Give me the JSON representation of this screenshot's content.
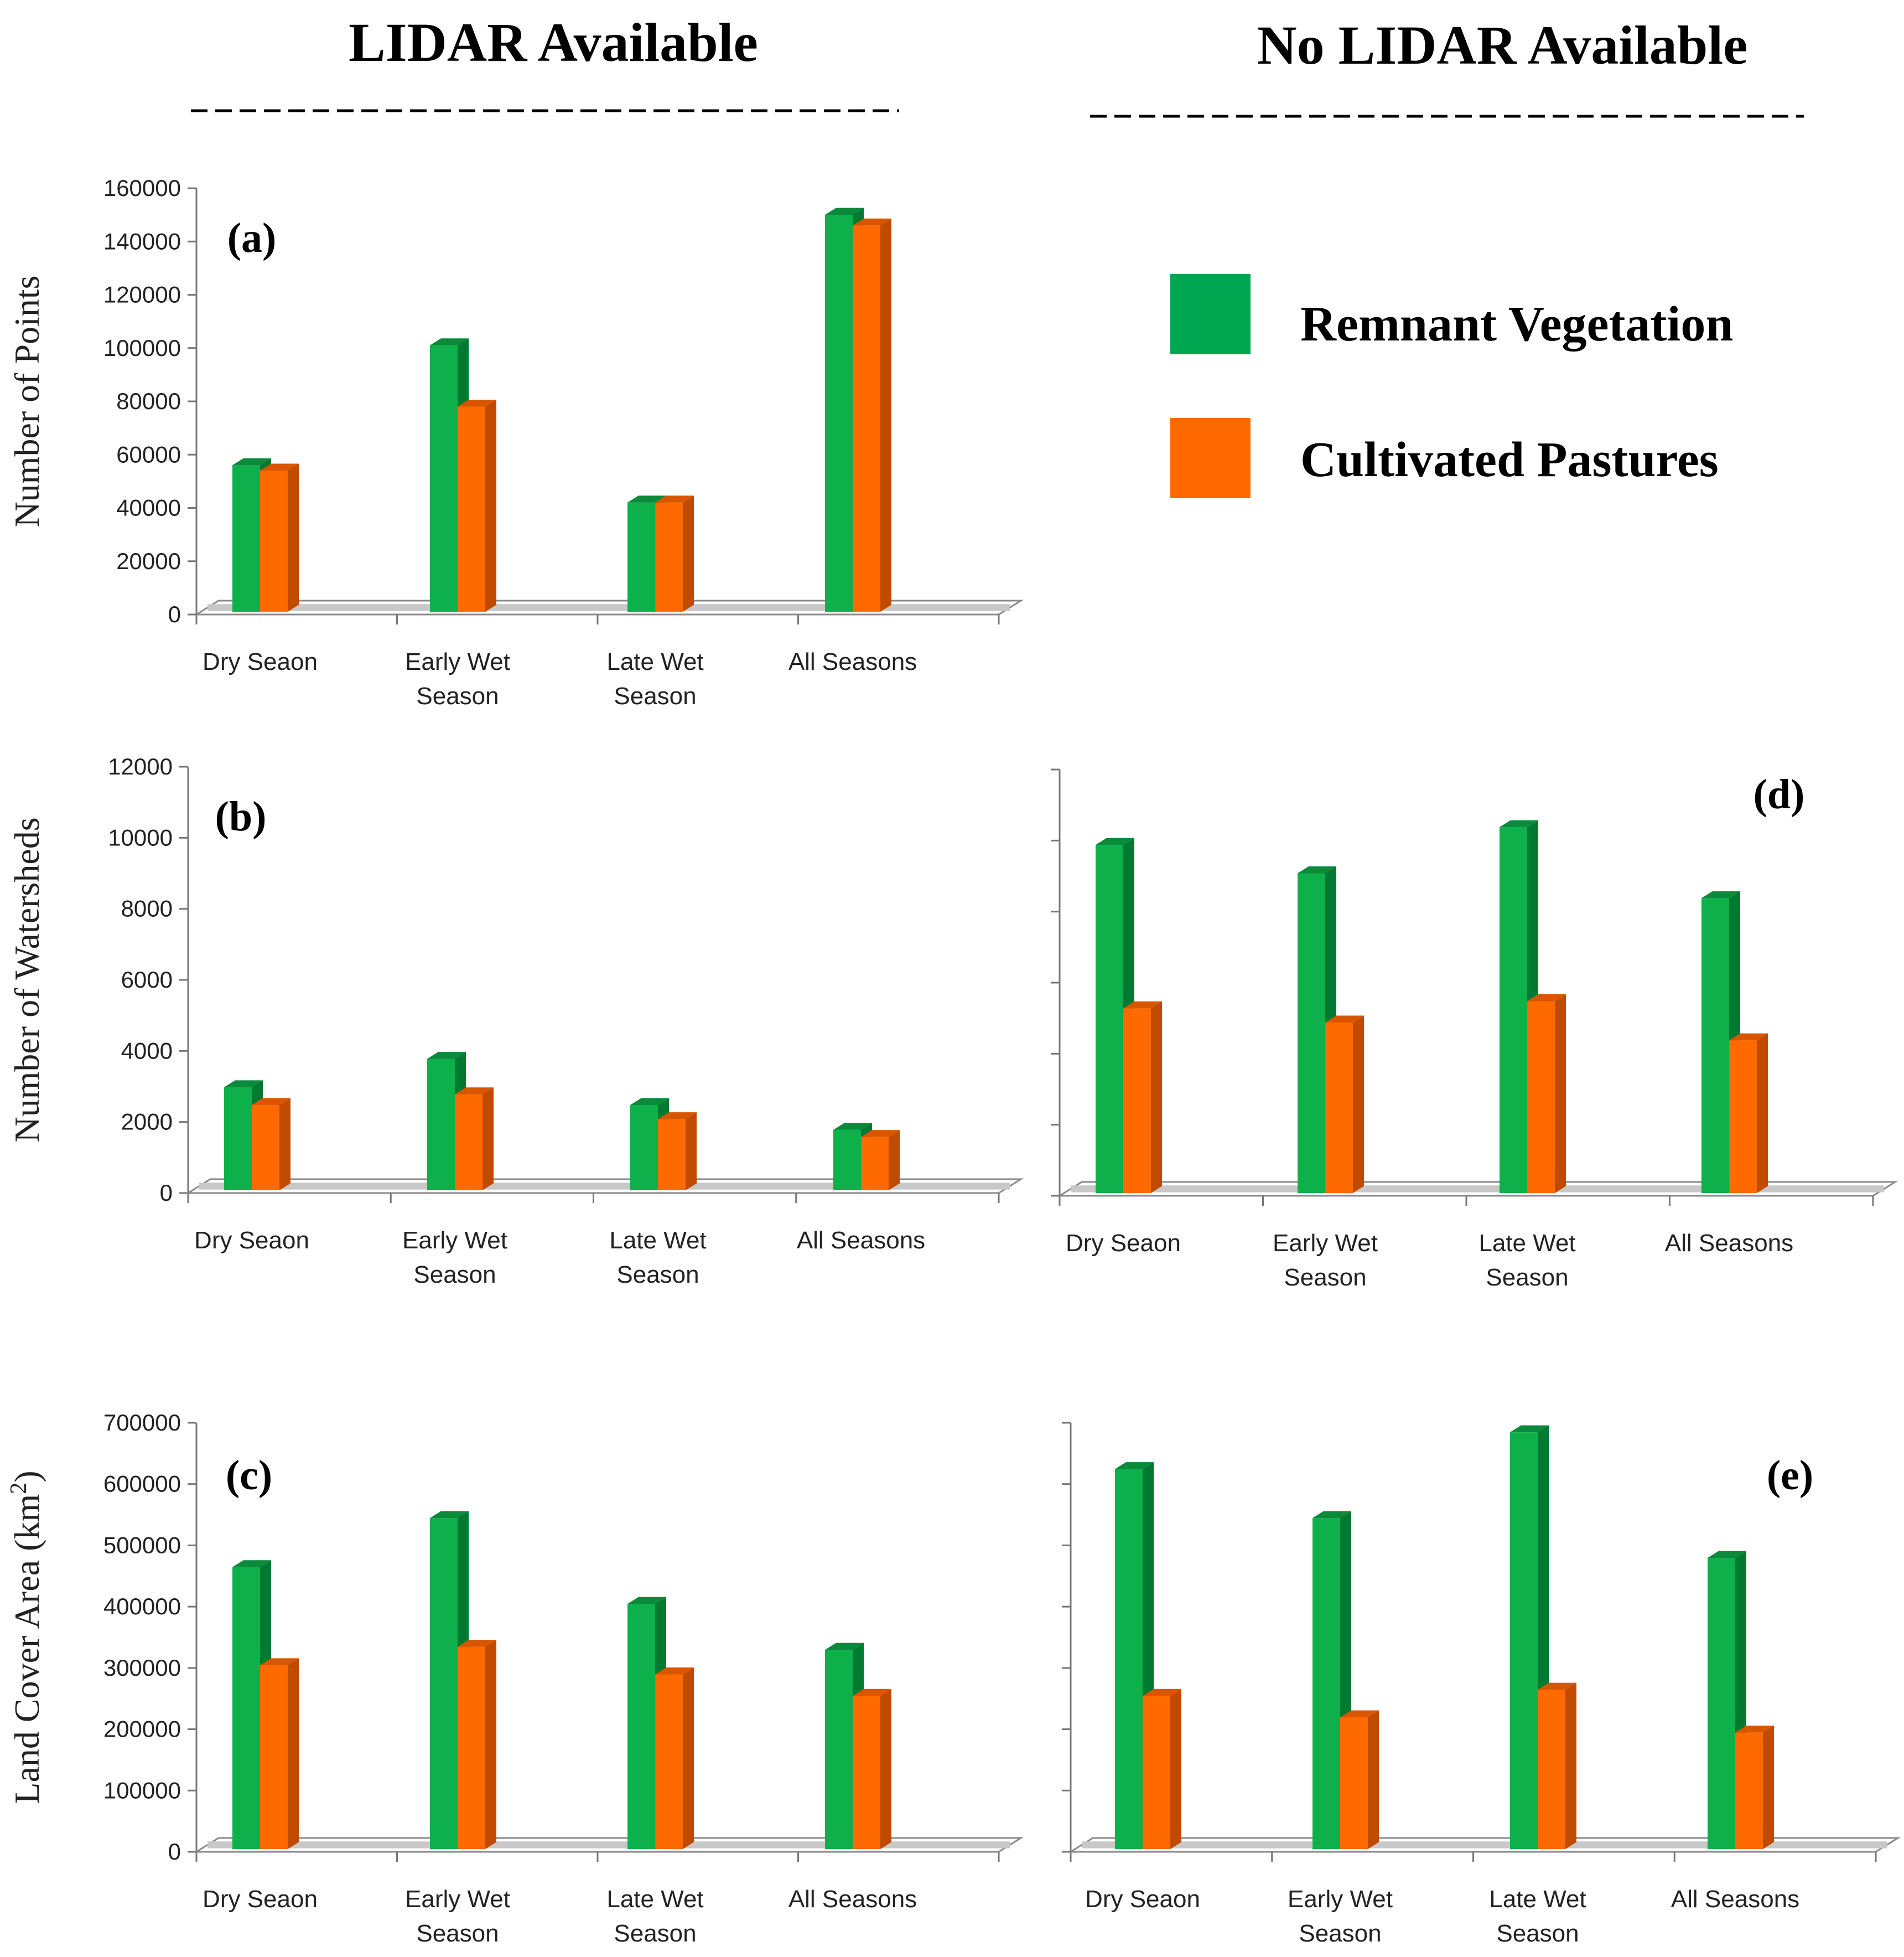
{
  "headers": {
    "left": "LIDAR Available",
    "right": "No LIDAR Available"
  },
  "legend": [
    {
      "label": "Remnant Vegetation",
      "color": "#00a650"
    },
    {
      "label": "Cultivated Pastures",
      "color": "#ff6a00"
    }
  ],
  "colors": {
    "green_front": "#0db04b",
    "green_side": "#007a30",
    "green_top": "#0a8a3a",
    "orange_front": "#ff6a00",
    "orange_side": "#c04a00",
    "orange_top": "#d85600",
    "floor": "#c8c8c8"
  },
  "chart_data": [
    {
      "id": "a",
      "panel_label": "(a)",
      "type": "bar",
      "title": "",
      "ylabel": "Number of Points",
      "ylabel_sup": "",
      "ylim": [
        0,
        160000
      ],
      "yticks": [
        0,
        20000,
        40000,
        60000,
        80000,
        100000,
        120000,
        140000,
        160000
      ],
      "categories": [
        [
          "Dry Seaon"
        ],
        [
          "Early Wet",
          "Season"
        ],
        [
          "Late Wet",
          "Season"
        ],
        [
          "All Seasons"
        ]
      ],
      "series": [
        {
          "name": "Remnant Vegetation",
          "values": [
            55000,
            100000,
            41000,
            149000
          ]
        },
        {
          "name": "Cultivated Pastures",
          "values": [
            53000,
            77000,
            41000,
            145000
          ]
        }
      ]
    },
    {
      "id": "b",
      "panel_label": "(b)",
      "type": "bar",
      "title": "",
      "ylabel": "Number of Watersheds",
      "ylabel_sup": "",
      "ylim": [
        0,
        12000
      ],
      "yticks": [
        0,
        2000,
        4000,
        6000,
        8000,
        10000,
        12000
      ],
      "categories": [
        [
          "Dry Seaon"
        ],
        [
          "Early Wet",
          "Season"
        ],
        [
          "Late Wet",
          "Season"
        ],
        [
          "All Seasons"
        ]
      ],
      "series": [
        {
          "name": "Remnant Vegetation",
          "values": [
            2900,
            3700,
            2400,
            1700
          ]
        },
        {
          "name": "Cultivated Pastures",
          "values": [
            2400,
            2700,
            2000,
            1500
          ]
        }
      ]
    },
    {
      "id": "c",
      "panel_label": "(c)",
      "type": "bar",
      "title": "",
      "ylabel": "Land Cover Area (km",
      "ylabel_sup": "2",
      "ylim": [
        0,
        700000
      ],
      "yticks": [
        0,
        100000,
        200000,
        300000,
        400000,
        500000,
        600000,
        700000
      ],
      "categories": [
        [
          "Dry Seaon"
        ],
        [
          "Early Wet",
          "Season"
        ],
        [
          "Late Wet",
          "Season"
        ],
        [
          "All Seasons"
        ]
      ],
      "series": [
        {
          "name": "Remnant Vegetation",
          "values": [
            460000,
            540000,
            400000,
            325000
          ]
        },
        {
          "name": "Cultivated Pastures",
          "values": [
            300000,
            330000,
            285000,
            250000
          ]
        }
      ]
    },
    {
      "id": "d",
      "panel_label": "(d)",
      "type": "bar",
      "title": "",
      "ylabel": "",
      "ylabel_sup": "",
      "ylim": [
        0,
        12000
      ],
      "yticks": [
        0,
        2000,
        4000,
        6000,
        8000,
        10000,
        12000
      ],
      "categories": [
        [
          "Dry Seaon"
        ],
        [
          "Early Wet",
          "Season"
        ],
        [
          "Late Wet",
          "Season"
        ],
        [
          "All Seasons"
        ]
      ],
      "series": [
        {
          "name": "Remnant Vegetation",
          "values": [
            9800,
            9000,
            10300,
            8300
          ]
        },
        {
          "name": "Cultivated Pastures",
          "values": [
            5200,
            4800,
            5400,
            4300
          ]
        }
      ]
    },
    {
      "id": "e",
      "panel_label": "(e)",
      "type": "bar",
      "title": "",
      "ylabel": "",
      "ylabel_sup": "",
      "ylim": [
        0,
        700000
      ],
      "yticks": [
        0,
        100000,
        200000,
        300000,
        400000,
        500000,
        600000,
        700000
      ],
      "categories": [
        [
          "Dry Seaon"
        ],
        [
          "Early Wet",
          "Season"
        ],
        [
          "Late Wet",
          "Season"
        ],
        [
          "All Seasons"
        ]
      ],
      "series": [
        {
          "name": "Remnant Vegetation",
          "values": [
            620000,
            540000,
            680000,
            475000
          ]
        },
        {
          "name": "Cultivated Pastures",
          "values": [
            250000,
            215000,
            260000,
            190000
          ]
        }
      ]
    }
  ]
}
